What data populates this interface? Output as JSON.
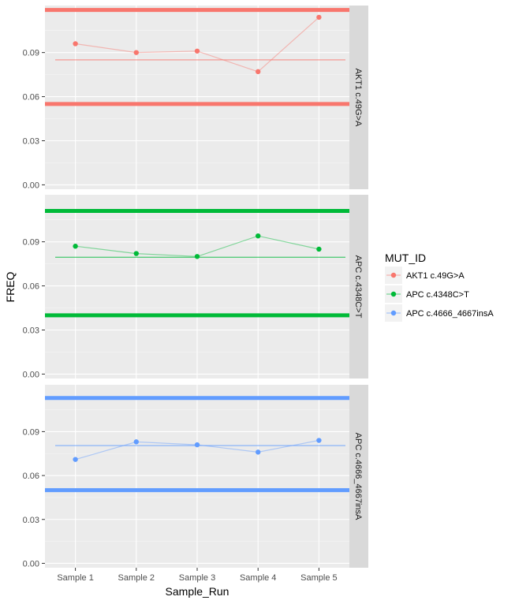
{
  "chart_data": {
    "type": "line",
    "xlabel": "Sample_Run",
    "ylabel": "FREQ",
    "categories": [
      "Sample 1",
      "Sample 2",
      "Sample 3",
      "Sample 4",
      "Sample 5"
    ],
    "ylim": [
      -0.003,
      0.122
    ],
    "yticks": [
      "0.00",
      "0.03",
      "0.06",
      "0.09"
    ],
    "ytick_values": [
      0.0,
      0.03,
      0.06,
      0.09
    ],
    "grid": true,
    "legend": {
      "title": "MUT_ID",
      "position": "right",
      "entries": [
        "AKT1 c.49G>A",
        "APC c.4348C>T",
        "APC c.4666_4667insA"
      ]
    },
    "series": [
      {
        "name": "AKT1 c.49G>A",
        "strip_label": "AKT1 c.49G>A",
        "color": "#F8766D",
        "values": [
          0.096,
          0.09,
          0.091,
          0.077,
          0.114
        ],
        "mean": 0.085,
        "upper_limit": 0.119,
        "lower_limit": 0.055
      },
      {
        "name": "APC c.4348C>T",
        "strip_label": "APC c.4348C>T",
        "color": "#00BA38",
        "values": [
          0.087,
          0.082,
          0.08,
          0.094,
          0.085
        ],
        "mean": 0.0795,
        "upper_limit": 0.111,
        "lower_limit": 0.04
      },
      {
        "name": "APC c.4666_4667insA",
        "strip_label": "APC c.4666_4667insA",
        "color": "#619CFF",
        "values": [
          0.071,
          0.083,
          0.081,
          0.076,
          0.084
        ],
        "mean": 0.0805,
        "upper_limit": 0.113,
        "lower_limit": 0.05
      }
    ]
  }
}
